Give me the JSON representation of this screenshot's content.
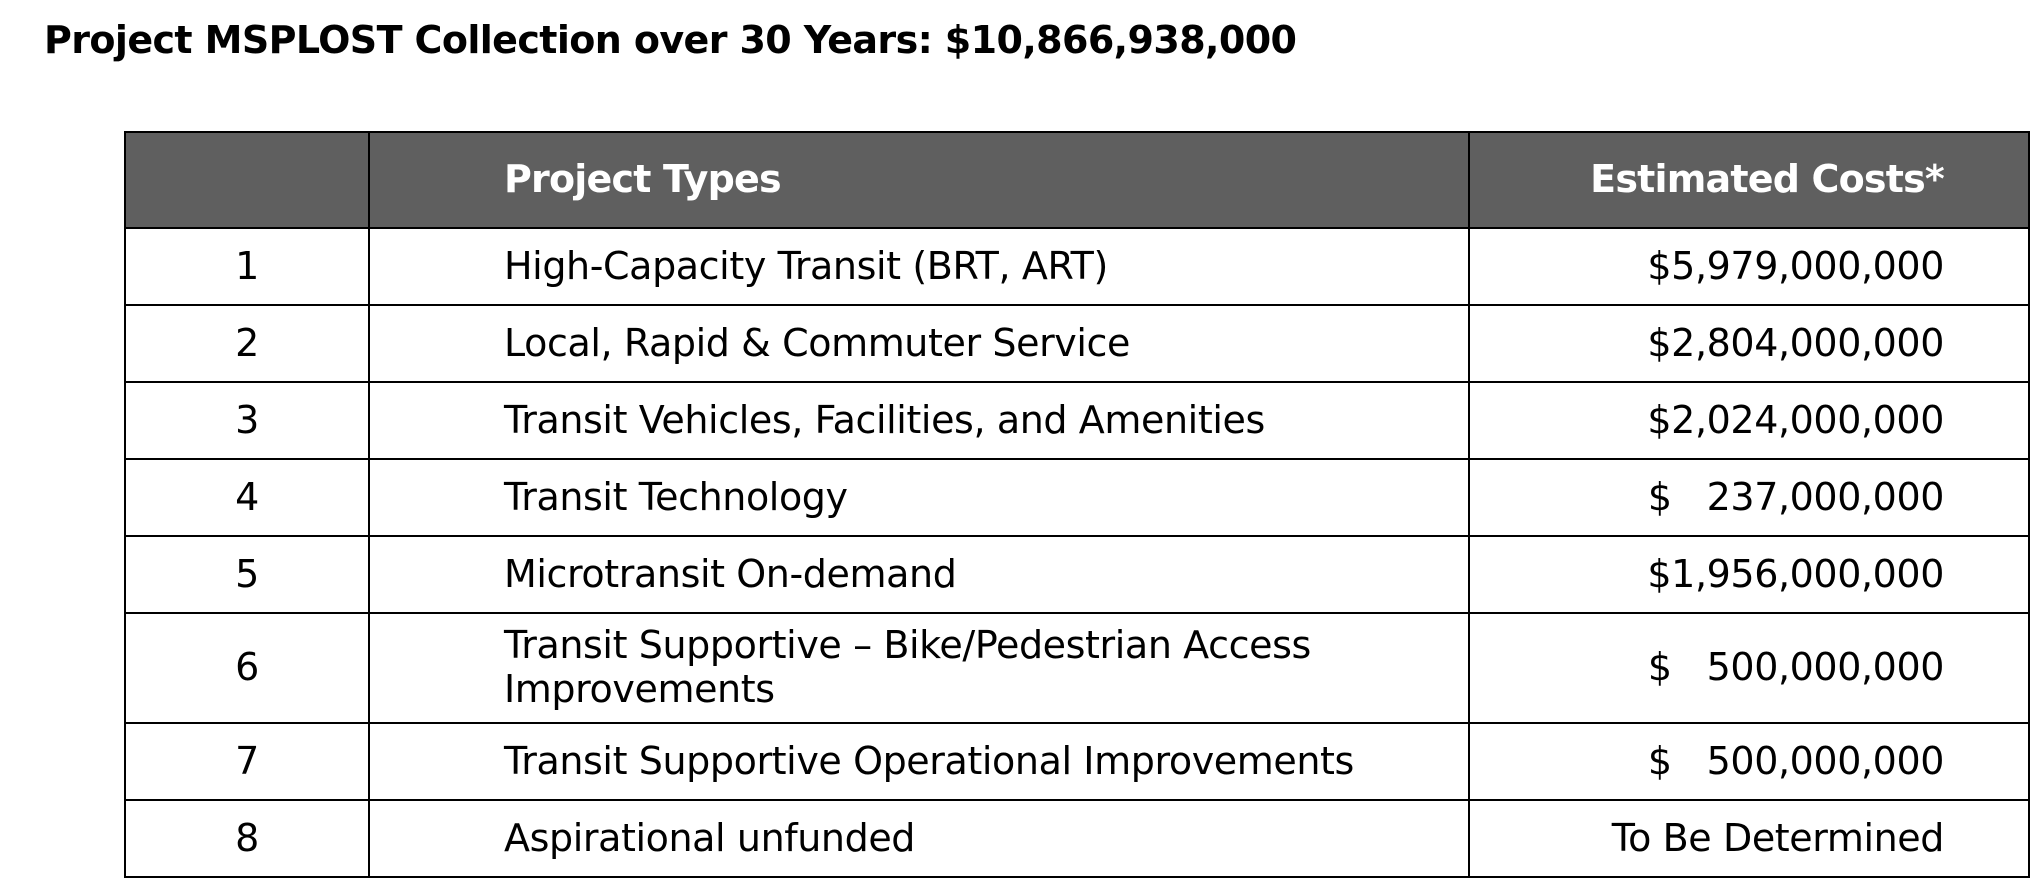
{
  "title": "Project MSPLOST Collection over 30 Years: $10,866,938,000",
  "table": {
    "headers": {
      "number": "",
      "project_types": "Project Types",
      "estimated_costs": "Estimated Costs*"
    },
    "rows": [
      {
        "number": "1",
        "type": "High-Capacity Transit (BRT, ART)",
        "cost": "$5,979,000,000"
      },
      {
        "number": "2",
        "type": "Local, Rapid & Commuter Service",
        "cost": "$2,804,000,000"
      },
      {
        "number": "3",
        "type": "Transit Vehicles, Facilities, and Amenities",
        "cost": "$2,024,000,000"
      },
      {
        "number": "4",
        "type": "Transit Technology",
        "cost": "$   237,000,000"
      },
      {
        "number": "5",
        "type": "Microtransit On-demand",
        "cost": "$1,956,000,000"
      },
      {
        "number": "6",
        "type": "Transit Supportive – Bike/Pedestrian Access Improvements",
        "cost": "$   500,000,000"
      },
      {
        "number": "7",
        "type": "Transit Supportive Operational Improvements",
        "cost": "$   500,000,000"
      },
      {
        "number": "8",
        "type": "Aspirational unfunded",
        "cost": "To Be Determined"
      }
    ]
  }
}
